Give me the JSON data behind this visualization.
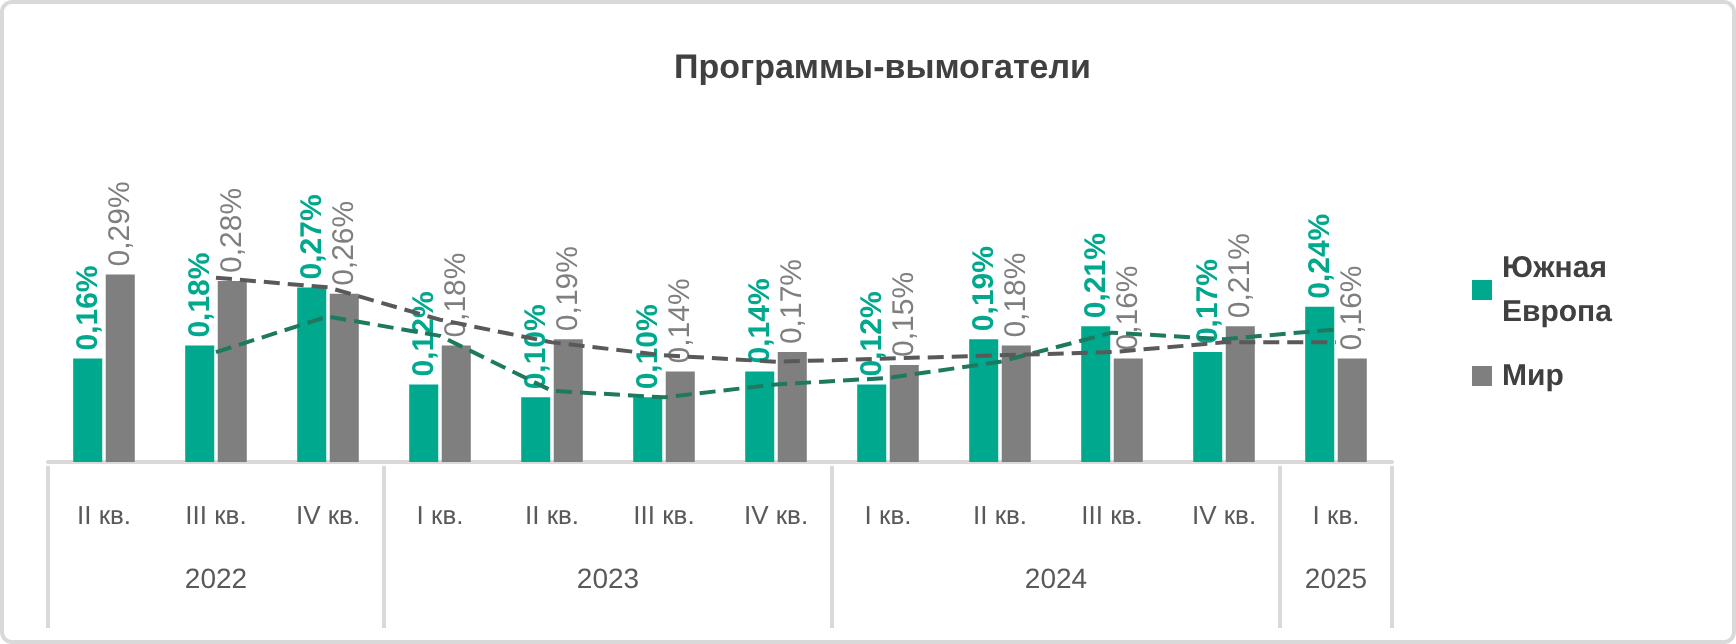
{
  "chart_data": {
    "type": "bar",
    "title": "Программы-вымогатели",
    "categories": [
      "II кв.",
      "III кв.",
      "IV кв.",
      "I кв.",
      "II кв.",
      "III кв.",
      "IV кв.",
      "I кв.",
      "II кв.",
      "III кв.",
      "IV кв.",
      "I кв."
    ],
    "series": [
      {
        "name": "Южная Европа",
        "color": "#00a88e",
        "values": [
          0.16,
          0.18,
          0.27,
          0.12,
          0.1,
          0.1,
          0.14,
          0.12,
          0.19,
          0.21,
          0.17,
          0.24
        ],
        "value_labels": [
          "0,16%",
          "0,18%",
          "0,27%",
          "0,12%",
          "0,10%",
          "0,10%",
          "0,14%",
          "0,12%",
          "0,19%",
          "0,21%",
          "0,17%",
          "0,24%"
        ]
      },
      {
        "name": "Мир",
        "color": "#7f7f7f",
        "values": [
          0.29,
          0.28,
          0.26,
          0.18,
          0.19,
          0.14,
          0.17,
          0.15,
          0.18,
          0.16,
          0.21,
          0.16
        ],
        "value_labels": [
          "0,29%",
          "0,28%",
          "0,26%",
          "0,18%",
          "0,19%",
          "0,14%",
          "0,17%",
          "0,15%",
          "0,18%",
          "0,16%",
          "0,21%",
          "0,16%"
        ]
      },
      {
        "type": "line",
        "color": "#1d7a5f",
        "line_style": "dashed",
        "values": [
          null,
          0.17,
          0.225,
          0.195,
          0.11,
          0.1,
          0.12,
          0.13,
          0.155,
          0.2,
          0.19,
          0.205
        ]
      },
      {
        "type": "line",
        "color": "#595959",
        "line_style": "dashed",
        "values": [
          null,
          0.285,
          0.27,
          0.22,
          0.185,
          0.165,
          0.155,
          0.16,
          0.165,
          0.17,
          0.185,
          0.185
        ]
      }
    ],
    "annotations": [
      "2022",
      "2023",
      "2024",
      "2025"
    ],
    "legend": "right"
  }
}
